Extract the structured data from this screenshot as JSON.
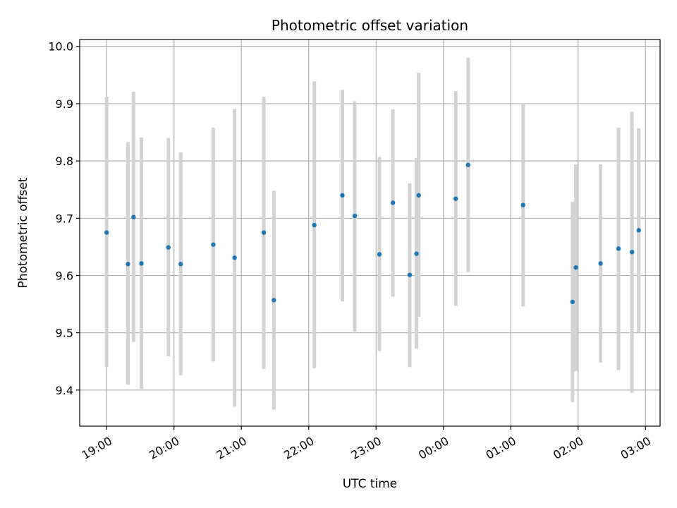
{
  "chart_data": {
    "type": "scatter",
    "title": "Photometric offset variation",
    "xlabel": "UTC time",
    "ylabel": "Photometric offset",
    "x_ticks": [
      "19:00",
      "20:00",
      "21:00",
      "22:00",
      "23:00",
      "00:00",
      "01:00",
      "02:00",
      "03:00"
    ],
    "y_ticks": [
      "9.4",
      "9.5",
      "9.6",
      "9.7",
      "9.8",
      "9.9",
      "10.0"
    ],
    "x_range": [
      "2000-01-01 18:36",
      "2000-01-02 03:13"
    ],
    "ylim": [
      9.337,
      10.012
    ],
    "grid": true,
    "x_tick_rotation": "30deg",
    "colors": {
      "point": "#1f77b4",
      "errorbar": "#d3d3d3",
      "grid": "#b0b0b0"
    },
    "points": [
      {
        "x": "2000-01-01 19:00",
        "y": 9.675,
        "err_low": 9.44,
        "err_high": 9.912
      },
      {
        "x": "2000-01-01 19:19",
        "y": 9.62,
        "err_low": 9.409,
        "err_high": 9.833
      },
      {
        "x": "2000-01-01 19:24",
        "y": 9.702,
        "err_low": 9.484,
        "err_high": 9.921
      },
      {
        "x": "2000-01-01 19:31",
        "y": 9.621,
        "err_low": 9.402,
        "err_high": 9.841
      },
      {
        "x": "2000-01-01 19:55",
        "y": 9.649,
        "err_low": 9.459,
        "err_high": 9.84
      },
      {
        "x": "2000-01-01 20:06",
        "y": 9.62,
        "err_low": 9.426,
        "err_high": 9.815
      },
      {
        "x": "2000-01-01 20:35",
        "y": 9.654,
        "err_low": 9.45,
        "err_high": 9.858
      },
      {
        "x": "2000-01-01 20:54",
        "y": 9.631,
        "err_low": 9.371,
        "err_high": 9.891
      },
      {
        "x": "2000-01-01 21:20",
        "y": 9.675,
        "err_low": 9.437,
        "err_high": 9.912
      },
      {
        "x": "2000-01-01 21:29",
        "y": 9.557,
        "err_low": 9.366,
        "err_high": 9.748
      },
      {
        "x": "2000-01-01 22:05",
        "y": 9.688,
        "err_low": 9.438,
        "err_high": 9.939
      },
      {
        "x": "2000-01-01 22:30",
        "y": 9.74,
        "err_low": 9.555,
        "err_high": 9.924
      },
      {
        "x": "2000-01-01 22:41",
        "y": 9.704,
        "err_low": 9.502,
        "err_high": 9.904
      },
      {
        "x": "2000-01-01 23:03",
        "y": 9.637,
        "err_low": 9.468,
        "err_high": 9.807
      },
      {
        "x": "2000-01-01 23:15",
        "y": 9.727,
        "err_low": 9.563,
        "err_high": 9.89
      },
      {
        "x": "2000-01-01 23:30",
        "y": 9.601,
        "err_low": 9.44,
        "err_high": 9.761
      },
      {
        "x": "2000-01-01 23:36",
        "y": 9.638,
        "err_low": 9.472,
        "err_high": 9.805
      },
      {
        "x": "2000-01-01 23:38",
        "y": 9.74,
        "err_low": 9.528,
        "err_high": 9.954
      },
      {
        "x": "2000-01-02 00:11",
        "y": 9.734,
        "err_low": 9.547,
        "err_high": 9.922
      },
      {
        "x": "2000-01-02 00:22",
        "y": 9.793,
        "err_low": 9.606,
        "err_high": 9.98
      },
      {
        "x": "2000-01-02 01:11",
        "y": 9.723,
        "err_low": 9.546,
        "err_high": 9.9
      },
      {
        "x": "2000-01-02 01:55",
        "y": 9.554,
        "err_low": 9.379,
        "err_high": 9.729
      },
      {
        "x": "2000-01-02 01:58",
        "y": 9.614,
        "err_low": 9.433,
        "err_high": 9.794
      },
      {
        "x": "2000-01-02 02:20",
        "y": 9.621,
        "err_low": 9.448,
        "err_high": 9.794
      },
      {
        "x": "2000-01-02 02:36",
        "y": 9.647,
        "err_low": 9.435,
        "err_high": 9.858
      },
      {
        "x": "2000-01-02 02:48",
        "y": 9.641,
        "err_low": 9.395,
        "err_high": 9.886
      },
      {
        "x": "2000-01-02 02:54",
        "y": 9.679,
        "err_low": 9.5,
        "err_high": 9.857
      }
    ]
  }
}
